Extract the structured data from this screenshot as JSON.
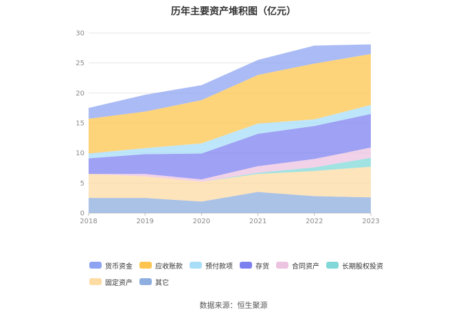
{
  "chart_data": {
    "type": "area",
    "title": "历年主要资产堆积图（亿元）",
    "x": [
      "2018",
      "2019",
      "2020",
      "2021",
      "2022",
      "2023"
    ],
    "ylim": [
      0,
      30
    ],
    "yticks": [
      0,
      5,
      10,
      15,
      20,
      25,
      30
    ],
    "grid": true,
    "legend_position": "bottom",
    "series": [
      {
        "name": "其它",
        "color": "#8daede",
        "values": [
          2.5,
          2.5,
          1.9,
          3.5,
          2.8,
          2.6
        ]
      },
      {
        "name": "固定资产",
        "color": "#fddba3",
        "values": [
          4.0,
          3.6,
          3.3,
          3.0,
          4.2,
          5.1
        ]
      },
      {
        "name": "长期股权投资",
        "color": "#82d8d8",
        "values": [
          0.0,
          0.0,
          0.0,
          0.2,
          0.6,
          1.5
        ]
      },
      {
        "name": "合同资产",
        "color": "#ecc3e0",
        "values": [
          0.0,
          0.4,
          0.4,
          1.1,
          1.4,
          1.7
        ]
      },
      {
        "name": "存货",
        "color": "#7d81f0",
        "values": [
          2.6,
          3.3,
          4.3,
          5.4,
          5.5,
          5.6
        ]
      },
      {
        "name": "预付款项",
        "color": "#a8def8",
        "values": [
          0.8,
          1.0,
          1.7,
          1.7,
          1.1,
          1.5
        ]
      },
      {
        "name": "应收账款",
        "color": "#fdc54f",
        "values": [
          5.8,
          6.1,
          7.2,
          8.1,
          9.3,
          8.5
        ]
      },
      {
        "name": "货币资金",
        "color": "#8ea4f2",
        "values": [
          1.8,
          2.8,
          2.5,
          2.5,
          3.0,
          1.6
        ]
      }
    ]
  },
  "legend_order": [
    "货币资金",
    "应收账款",
    "预付款项",
    "存货",
    "合同资产",
    "长期股权投资",
    "固定资产",
    "其它"
  ],
  "source": "数据来源：恒生聚源"
}
